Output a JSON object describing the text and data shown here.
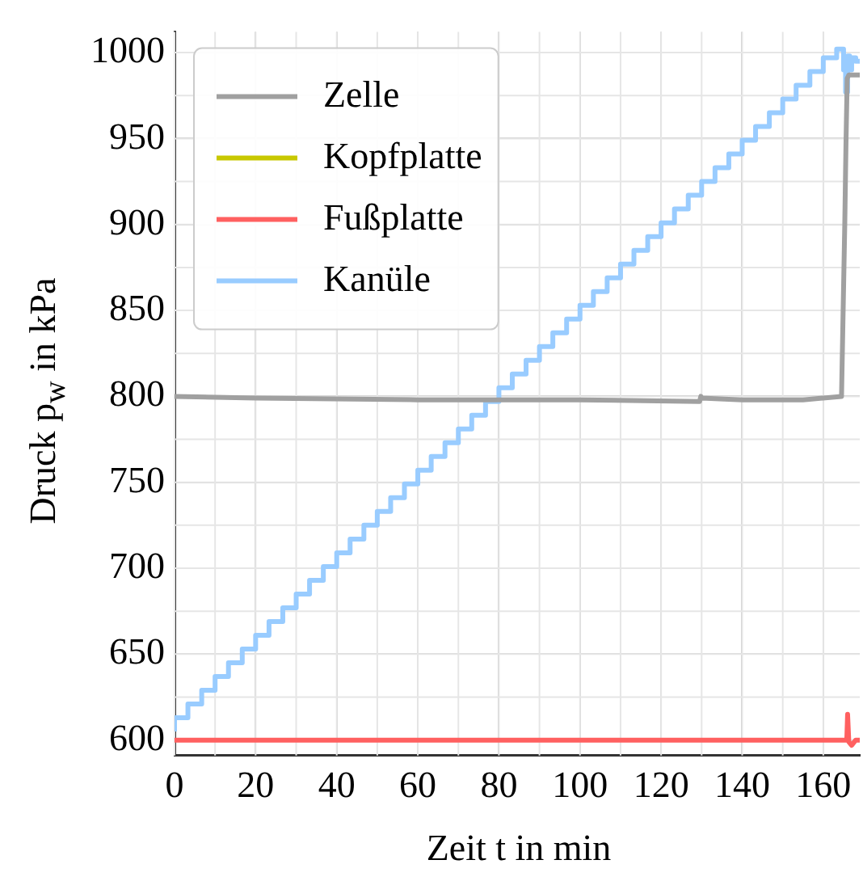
{
  "chart_data": {
    "type": "line",
    "xlabel": "Zeit t in min",
    "ylabel": "Druck p$_{w}$ in kPa",
    "xlim": [
      0,
      169
    ],
    "xticks": [
      0,
      20,
      40,
      60,
      80,
      100,
      120,
      140,
      160
    ],
    "ylim": [
      591,
      1012
    ],
    "yticks": [
      600,
      650,
      700,
      750,
      800,
      850,
      900,
      950,
      1000
    ],
    "grid": true,
    "legend": "top left",
    "series": [
      {
        "name": "Zelle",
        "color": "#a0a0a0",
        "x": [
          0,
          20,
          60,
          100,
          129.5,
          129.8,
          130,
          140,
          150,
          155,
          164.5,
          165.3,
          165.6,
          165.9,
          166.3,
          169
        ],
        "values": [
          800,
          799,
          798,
          798,
          797,
          800,
          799,
          798,
          798,
          798,
          800,
          900,
          947,
          985,
          987,
          987
        ]
      },
      {
        "name": "Kopfplatte",
        "color": "#c8c800"
      },
      {
        "name": "Fußplatte",
        "color": "#ff6060",
        "x": [
          0,
          165.8,
          166,
          166.3,
          167,
          168,
          169
        ],
        "values": [
          600,
          600,
          615,
          599,
          597,
          600,
          600
        ]
      },
      {
        "name": "Kanüle",
        "color": "#99ccff",
        "type": "step",
        "x": [
          0,
          3.3,
          6.7,
          10,
          13.3,
          16.7,
          20,
          23.3,
          26.7,
          30,
          33.3,
          36.7,
          40,
          43.3,
          46.7,
          50,
          53.3,
          56.7,
          60,
          63.3,
          66.7,
          70,
          73.3,
          76.7,
          80,
          83.3,
          86.7,
          90,
          93.3,
          96.7,
          100,
          103.3,
          106.7,
          110,
          113.3,
          116.7,
          120,
          123.3,
          126.7,
          130,
          133.3,
          136.7,
          140,
          143.3,
          146.7,
          150,
          153.3,
          156.7,
          160,
          163.3,
          165,
          165.5,
          166,
          166.5,
          167,
          168,
          169
        ],
        "values": [
          605,
          613,
          621,
          629,
          637,
          645,
          653,
          661,
          669,
          677,
          685,
          693,
          701,
          709,
          717,
          725,
          733,
          741,
          749,
          757,
          765,
          773,
          781,
          789,
          797,
          805,
          813,
          821,
          829,
          837,
          845,
          853,
          861,
          869,
          877,
          885,
          893,
          901,
          909,
          917,
          925,
          933,
          941,
          949,
          957,
          965,
          973,
          981,
          989,
          997,
          1002,
          990,
          977,
          998,
          990,
          997,
          995
        ]
      }
    ]
  }
}
